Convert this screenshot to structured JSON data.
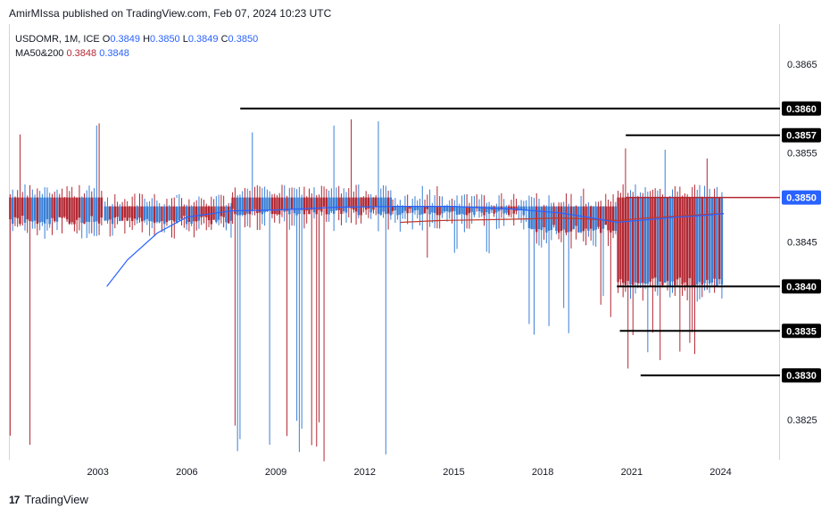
{
  "header": {
    "publisher_line": "AmirMIssa published on TradingView.com, Feb 07, 2024 10:23 UTC"
  },
  "legend": {
    "symbol": "USDOMR, 1M, ICE",
    "o_label": "O",
    "o_value": "0.3849",
    "h_label": "H",
    "h_value": "0.3850",
    "l_label": "L",
    "l_value": "0.3849",
    "c_label": "C",
    "c_value": "0.3850",
    "ma_label": "MA50&200",
    "ma50_value": "0.3848",
    "ma200_value": "0.3848"
  },
  "footer": {
    "brand": "TradingView",
    "logo_text": "17"
  },
  "colors": {
    "up": "#3a7fd5",
    "down": "#b22833",
    "ma50": "#c0392b",
    "ma200": "#2962ff",
    "level_line": "#000000",
    "current_badge": "#2962ff"
  },
  "chart_data": {
    "type": "candlestick",
    "title": "USDOMR, 1M, ICE",
    "x_range": [
      2000.0,
      2026.0
    ],
    "x_ticks": [
      {
        "label": "2003",
        "value": 2003
      },
      {
        "label": "2006",
        "value": 2006
      },
      {
        "label": "2009",
        "value": 2009
      },
      {
        "label": "2012",
        "value": 2012
      },
      {
        "label": "2015",
        "value": 2015
      },
      {
        "label": "2018",
        "value": 2018
      },
      {
        "label": "2021",
        "value": 2021
      },
      {
        "label": "2024",
        "value": 2024
      }
    ],
    "y_range": [
      0.38205,
      0.38695
    ],
    "y_ticks": [
      {
        "label": "0.3865",
        "value": 0.3865
      },
      {
        "label": "0.3855",
        "value": 0.3855
      },
      {
        "label": "0.3845",
        "value": 0.3845
      },
      {
        "label": "0.3825",
        "value": 0.3825
      }
    ],
    "level_badges": [
      {
        "label": "0.3860",
        "value": 0.386,
        "from_x": 2007.8
      },
      {
        "label": "0.3857",
        "value": 0.3857,
        "from_x": 2020.8
      },
      {
        "label": "0.3840",
        "value": 0.384,
        "from_x": 2020.5
      },
      {
        "label": "0.3835",
        "value": 0.3835,
        "from_x": 2020.6
      },
      {
        "label": "0.3830",
        "value": 0.383,
        "from_x": 2021.3
      }
    ],
    "current_price": {
      "label": "0.3850",
      "value": 0.385,
      "from_x": 2020.8
    },
    "series": [
      {
        "name": "MA50",
        "color": "#c0392b",
        "points": [
          [
            2013.2,
            0.38472
          ],
          [
            2014.5,
            0.38474
          ],
          [
            2016,
            0.38475
          ],
          [
            2017.5,
            0.38476
          ],
          [
            2018.5,
            0.38477
          ],
          [
            2019.5,
            0.38476
          ],
          [
            2020.5,
            0.38474
          ],
          [
            2021.5,
            0.38477
          ],
          [
            2022.5,
            0.38479
          ],
          [
            2023.5,
            0.38481
          ],
          [
            2024.1,
            0.38482
          ]
        ]
      },
      {
        "name": "MA200",
        "color": "#2962ff",
        "points": [
          [
            2003.3,
            0.384
          ],
          [
            2004,
            0.3843
          ],
          [
            2005,
            0.3846
          ],
          [
            2006,
            0.38478
          ],
          [
            2007.5,
            0.38485
          ],
          [
            2009,
            0.38486
          ],
          [
            2011,
            0.38489
          ],
          [
            2013,
            0.3849
          ],
          [
            2015,
            0.3849
          ],
          [
            2017,
            0.38487
          ],
          [
            2018.5,
            0.38483
          ],
          [
            2019.5,
            0.38478
          ],
          [
            2020.5,
            0.38472
          ],
          [
            2021.5,
            0.38475
          ],
          [
            2022.5,
            0.38478
          ],
          [
            2023.5,
            0.3848
          ],
          [
            2024.1,
            0.38482
          ]
        ]
      }
    ],
    "candle_profile": [
      {
        "from": 2000.0,
        "to": 2003.2,
        "open": 0.385,
        "close": 0.3847,
        "high": 0.386,
        "low": 0.3821,
        "alt": true
      },
      {
        "from": 2003.2,
        "to": 2007.5,
        "open": 0.3849,
        "close": 0.3847,
        "high": 0.3851,
        "low": 0.3845,
        "alt": true
      },
      {
        "from": 2007.5,
        "to": 2012.9,
        "open": 0.385,
        "close": 0.3848,
        "high": 0.386,
        "low": 0.382,
        "alt": true
      },
      {
        "from": 2012.9,
        "to": 2017.5,
        "open": 0.3849,
        "close": 0.3848,
        "high": 0.3852,
        "low": 0.3843,
        "alt": true
      },
      {
        "from": 2017.5,
        "to": 2020.5,
        "open": 0.3849,
        "close": 0.3846,
        "high": 0.3851,
        "low": 0.3834,
        "alt": true
      },
      {
        "from": 2020.5,
        "to": 2024.1,
        "open": 0.385,
        "close": 0.384,
        "high": 0.3857,
        "low": 0.383,
        "alt": true
      }
    ]
  }
}
